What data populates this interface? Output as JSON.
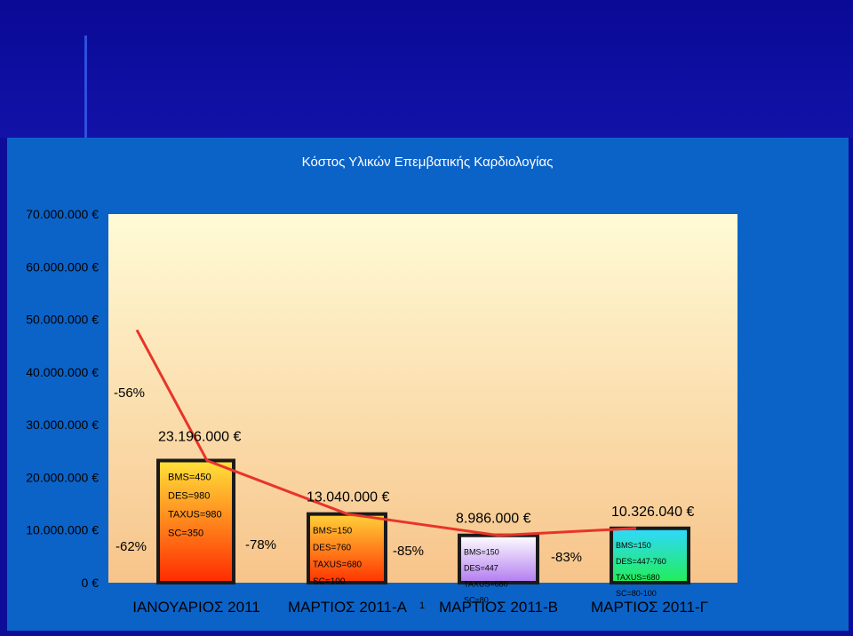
{
  "chart_data": {
    "type": "bar",
    "title": "Κόστος Υλικών  Επεμβατικής Καρδιολογίας",
    "categories": [
      "ΙΑΝΟΥΑΡΙΟΣ 2011",
      "ΜΑΡΤΙΟΣ 2011-Α",
      "ΜΑΡΤΙΟΣ 2011-Β",
      "ΜΑΡΤΙΟΣ 2011-Γ"
    ],
    "category_suffix_1": "1",
    "values": [
      23196000,
      13040000,
      8986000,
      10326040
    ],
    "value_labels": [
      "23.196.000 €",
      "13.040.000 €",
      "8.986.000 €",
      "10.326.040 €"
    ],
    "bar_items": [
      [
        "BMS=450",
        "DES=980",
        "TAXUS=980",
        "SC=350"
      ],
      [
        "BMS=150",
        "DES=760",
        "TAXUS=680",
        "SC=100"
      ],
      [
        "BMS=150",
        "DES=447",
        "TAXUS=680",
        "SC=80"
      ],
      [
        "BMS=150",
        "DES=447-760",
        "TAXUS=680",
        "SC=80-100"
      ]
    ],
    "ylim": [
      0,
      70000000
    ],
    "y_ticks": [
      0,
      10000000,
      20000000,
      30000000,
      40000000,
      50000000,
      60000000,
      70000000
    ],
    "y_tick_labels": [
      "0 €",
      "10.000.000 €",
      "20.000.000 €",
      "30.000.000 €",
      "40.000.000 €",
      "50.000.000 €",
      "60.000.000 €",
      "70.000.000 €"
    ],
    "trend_line": [
      48000000,
      23196000,
      13040000,
      8986000,
      10326040
    ],
    "annotations": [
      "-56%",
      "-62%",
      "-78%",
      "-85%",
      "-83%"
    ],
    "colors": {
      "plot_top": "#fffbd6",
      "plot_bottom": "#f7c48a",
      "trend_line": "#e8342a",
      "panel": "#0b63c8",
      "bar_0": [
        "#ffe23a",
        "#ff2a00"
      ],
      "bar_1": [
        "#ffd23a",
        "#ff3300"
      ],
      "bar_2": [
        "#ffffff",
        "#b27bf0"
      ],
      "bar_3": [
        "#30d8ff",
        "#22ee55"
      ]
    }
  }
}
